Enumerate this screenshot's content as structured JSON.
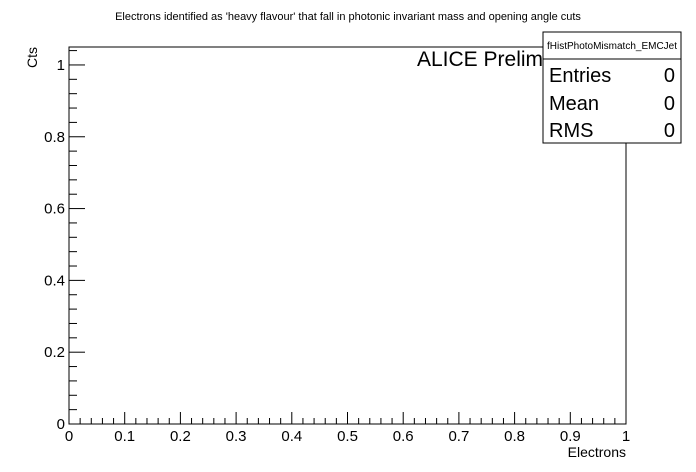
{
  "chart_data": {
    "type": "bar",
    "title": "Electrons identified as 'heavy flavour' that fall in photonic invariant mass and opening angle cuts",
    "xlabel": "Electrons",
    "ylabel": "Cts",
    "xlim": [
      0,
      1
    ],
    "ylim": [
      0,
      1.05
    ],
    "x_ticks": [
      "0",
      "0.1",
      "0.2",
      "0.3",
      "0.4",
      "0.5",
      "0.6",
      "0.7",
      "0.8",
      "0.9",
      "1"
    ],
    "y_ticks": [
      "0",
      "0.2",
      "0.4",
      "0.6",
      "0.8",
      "1"
    ],
    "series": [],
    "annotation": "ALICE Preliminary",
    "stats_box": {
      "name": "fHistPhotoMismatch_EMCJet",
      "rows": [
        {
          "label": "Entries",
          "value": "0"
        },
        {
          "label": "Mean",
          "value": "0"
        },
        {
          "label": "RMS",
          "value": "0"
        }
      ]
    },
    "grid": false
  }
}
